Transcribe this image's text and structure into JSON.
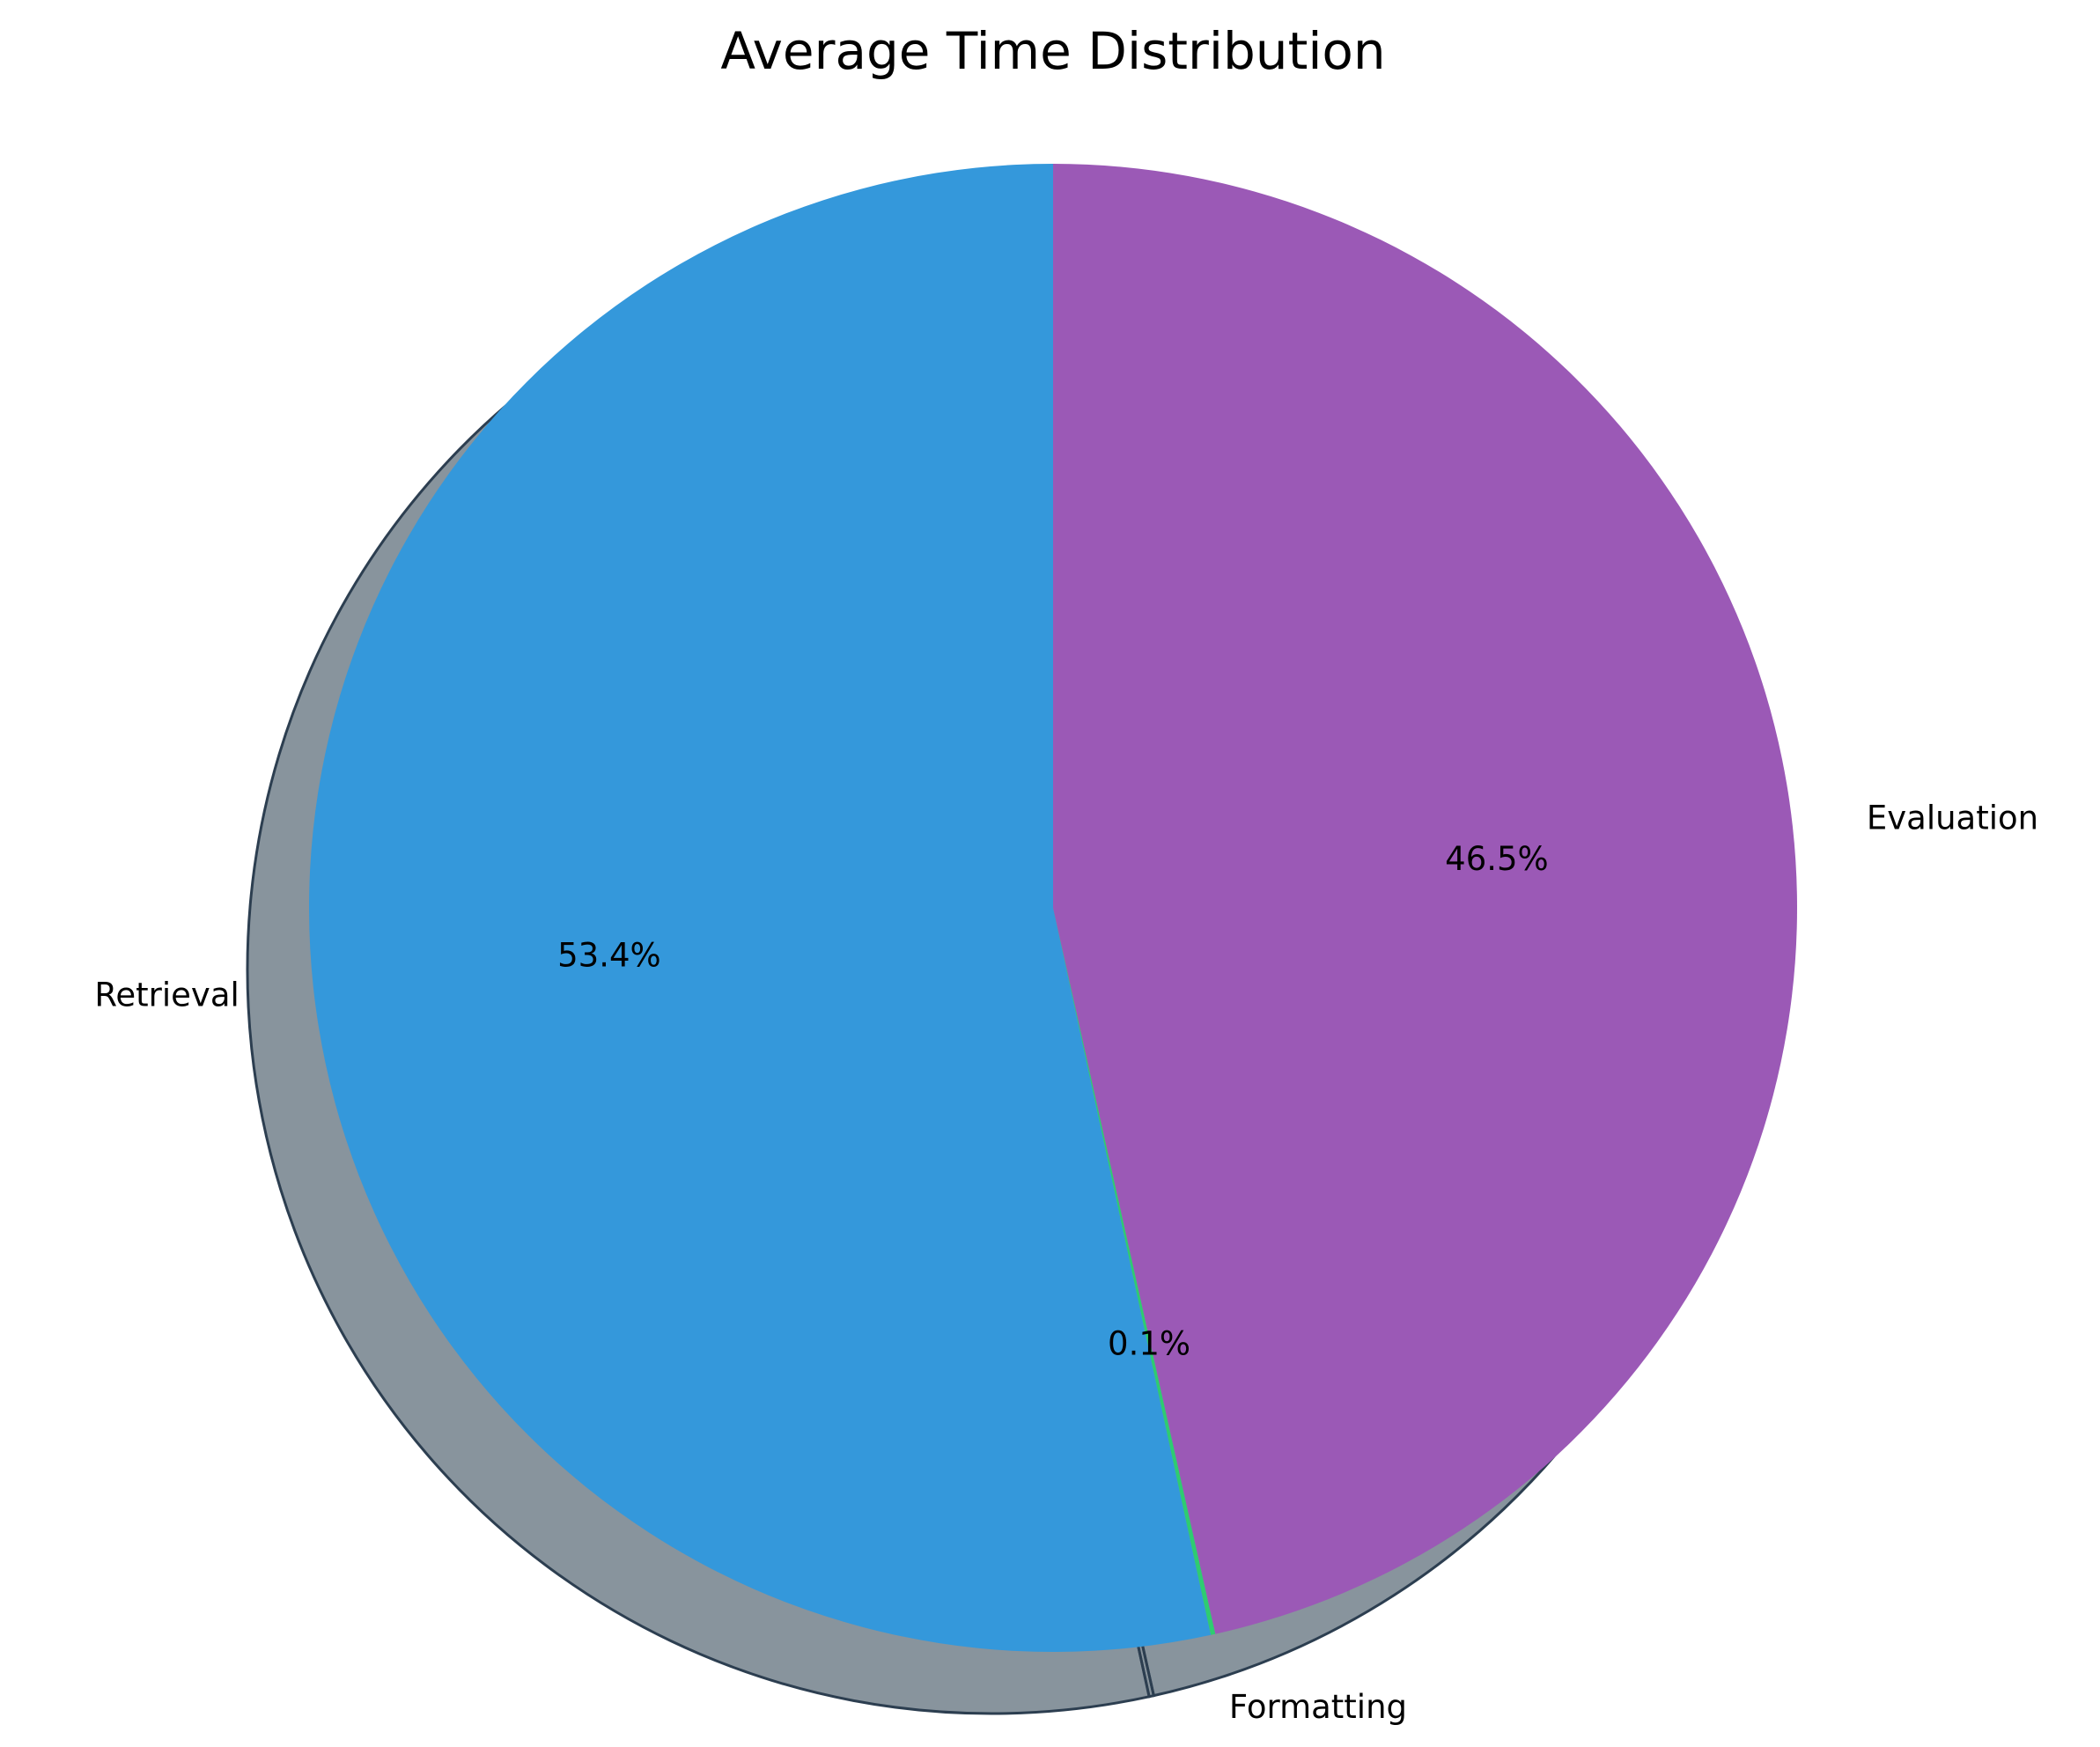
{
  "chart_data": {
    "type": "pie",
    "title": "Average Time Distribution",
    "slices": [
      {
        "label": "Retrieval",
        "value": 53.4,
        "pct_text": "53.4%",
        "color": "#3498db"
      },
      {
        "label": "Formatting",
        "value": 0.1,
        "pct_text": "0.1%",
        "color": "#2ecc71"
      },
      {
        "label": "Evaluation",
        "value": 46.5,
        "pct_text": "46.5%",
        "color": "#9b59b6"
      }
    ],
    "start_angle": 90,
    "direction": "counterclockwise",
    "shadow": true,
    "legend": "none"
  }
}
